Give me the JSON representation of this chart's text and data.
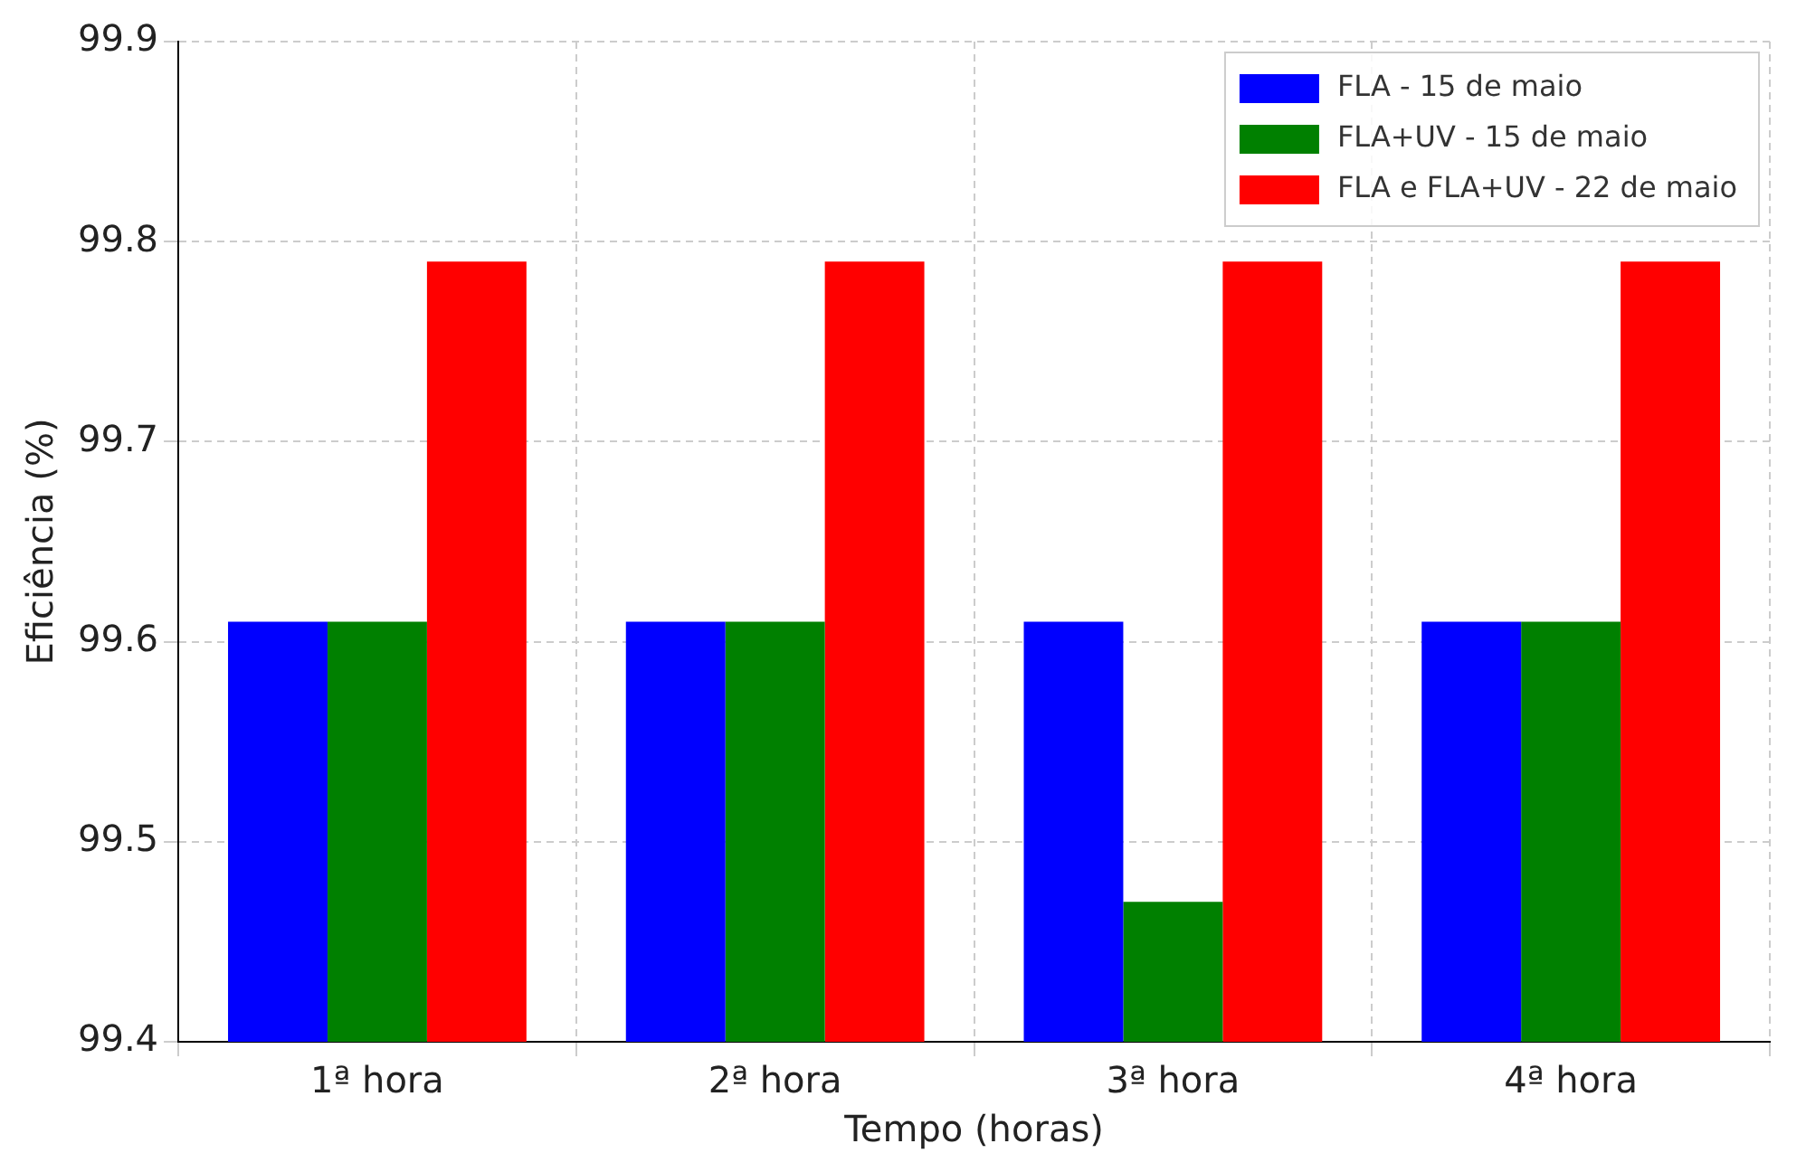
{
  "chart_data": {
    "type": "bar",
    "xlabel": "Tempo (horas)",
    "ylabel": "Eficiência (%)",
    "categories": [
      "1ª hora",
      "2ª hora",
      "3ª hora",
      "4ª hora"
    ],
    "series": [
      {
        "name": "FLA - 15 de maio",
        "color": "#0000ff",
        "values": [
          99.61,
          99.61,
          99.61,
          99.61
        ]
      },
      {
        "name": "FLA+UV - 15 de maio",
        "color": "#008000",
        "values": [
          99.61,
          99.61,
          99.47,
          99.61
        ]
      },
      {
        "name": "FLA e FLA+UV - 22 de maio",
        "color": "#ff0000",
        "values": [
          99.79,
          99.79,
          99.79,
          99.79
        ]
      }
    ],
    "ylim": [
      99.4,
      99.9
    ],
    "yticks": [
      99.4,
      99.5,
      99.6,
      99.7,
      99.8,
      99.9
    ],
    "grid": true,
    "legend": "top right"
  }
}
